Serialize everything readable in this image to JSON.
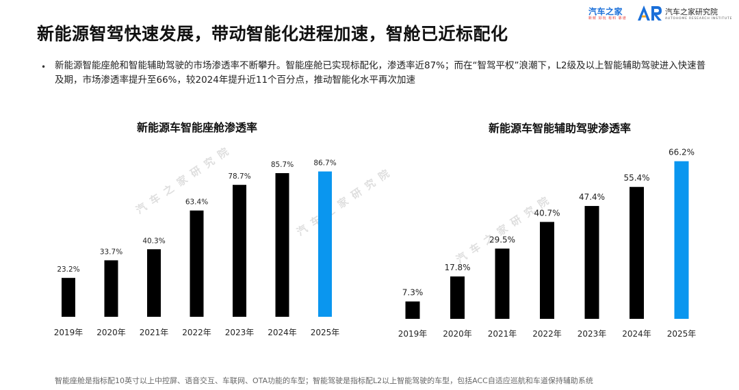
{
  "page": {
    "title": "新能源智驾快速发展，带动智能化进程加速，智舱已近标配化",
    "bullet": "新能源智能座舱和智能辅助驾驶的市场渗透率不断攀升。智能座舱已实现标配化，渗透率近87%；而在“智驾平权”浪潮下，L2级及以上智能辅助驾驶进入快速普及期，市场渗透率提升至66%，较2024年提升近11个百分点，推动智能化水平再次加速",
    "footnote": "智能座舱是指标配10英寸以上中控屏、语音交互、车联网、OTA功能的车型；智能驾驶是指标配L2以上智能驾驶的车型，包括ACC自适应巡航和车道保持辅助系统"
  },
  "logo": {
    "brand": "汽车之家",
    "brand_sub": "新鲜 好玩 有料 靠谱",
    "institute": "汽车之家研究院",
    "institute_en": "AUTOHOME RESEARCH INSTITUTE"
  },
  "watermark": "汽车之家研究院",
  "colors": {
    "bar": "#000000",
    "highlight": "#0a96ef"
  },
  "chart_data": [
    {
      "type": "bar",
      "title": "新能源车智能座舱渗透率",
      "categories": [
        "2019年",
        "2020年",
        "2021年",
        "2022年",
        "2023年",
        "2024年",
        "2025年"
      ],
      "values": [
        23.2,
        33.7,
        40.3,
        63.4,
        78.7,
        85.7,
        86.7
      ],
      "labels": [
        "23.2%",
        "33.7%",
        "40.3%",
        "63.4%",
        "78.7%",
        "85.7%",
        "86.7%"
      ],
      "highlight_index": 6,
      "ylim": [
        0,
        100
      ],
      "grid": false,
      "legend": "none"
    },
    {
      "type": "bar",
      "title": "新能源车智能辅助驾驶渗透率",
      "categories": [
        "2019年",
        "2020年",
        "2021年",
        "2022年",
        "2023年",
        "2024年",
        "2025年"
      ],
      "values": [
        7.3,
        17.8,
        29.5,
        40.7,
        47.4,
        55.4,
        66.2
      ],
      "labels": [
        "7.3%",
        "17.8%",
        "29.5%",
        "40.7%",
        "47.4%",
        "55.4%",
        "66.2%"
      ],
      "highlight_index": 6,
      "ylim": [
        0,
        100
      ],
      "grid": false,
      "legend": "none"
    }
  ]
}
